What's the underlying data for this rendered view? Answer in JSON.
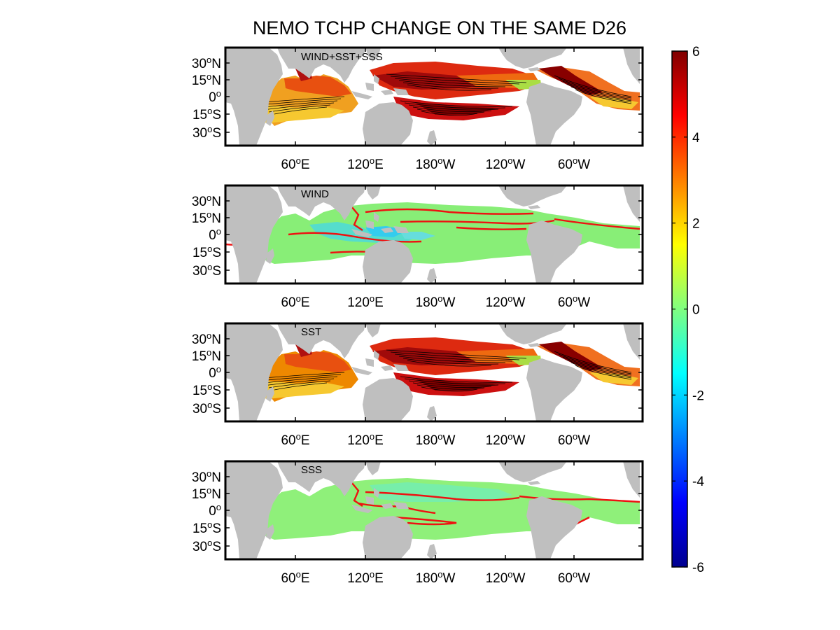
{
  "title": "NEMO TCHP CHANGE ON THE SAME D26",
  "panels": [
    {
      "label": "WIND+SST+SSS"
    },
    {
      "label": "WIND"
    },
    {
      "label": "SST"
    },
    {
      "label": "SSS"
    }
  ],
  "lat_labels": {
    "n30": {
      "v": "30",
      "h": "N"
    },
    "n15": {
      "v": "15",
      "h": "N"
    },
    "eq": {
      "v": "0",
      "h": ""
    },
    "s15": {
      "v": "15",
      "h": "S"
    },
    "s30": {
      "v": "30",
      "h": "S"
    }
  },
  "lon_labels": {
    "e60": {
      "v": "60",
      "h": "E"
    },
    "e120": {
      "v": "120",
      "h": "E"
    },
    "w180": {
      "v": "180",
      "h": "W"
    },
    "w120": {
      "v": "120",
      "h": "W"
    },
    "w60": {
      "v": "60",
      "h": "W"
    }
  },
  "colorbar": {
    "ticks": [
      "6",
      "4",
      "2",
      "0",
      "-2",
      "-4",
      "-6"
    ],
    "min": -6,
    "max": 6
  },
  "colors": {
    "land": "#bfbfbf",
    "contour": "#000000",
    "zero_contour": "#ee1111"
  }
}
